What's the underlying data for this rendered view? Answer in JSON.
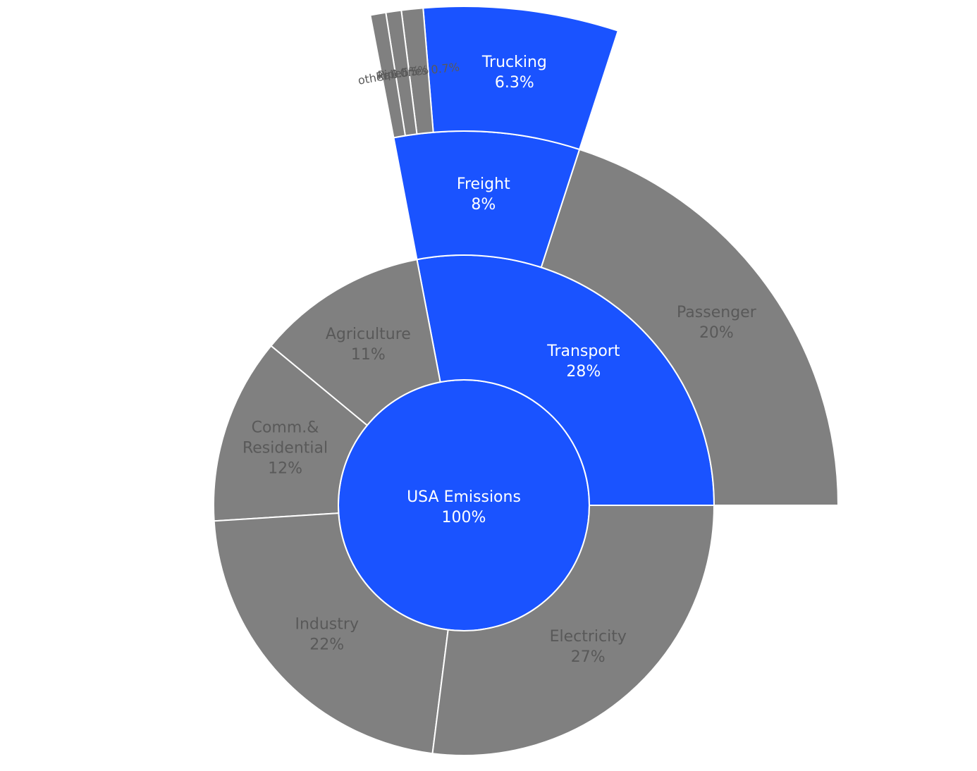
{
  "colors": {
    "highlight": "#1a53ff",
    "muted": "#808080",
    "stroke": "#ffffff",
    "text_on_highlight": "#ffffff",
    "text_on_muted": "#595959"
  },
  "chart_data": {
    "type": "sunburst",
    "title": "",
    "root": {
      "label": "USA Emissions",
      "pct_label": "100%",
      "value": 100,
      "highlight": true
    },
    "ring1": [
      {
        "label": "Transport",
        "pct_label": "28%",
        "value": 28,
        "highlight": true
      },
      {
        "label": "Agriculture",
        "pct_label": "11%",
        "value": 11,
        "highlight": false
      },
      {
        "label": "Comm.& Residential",
        "label_lines": [
          "Comm.&",
          "Residential"
        ],
        "pct_label": "12%",
        "value": 12,
        "highlight": false
      },
      {
        "label": "Industry",
        "pct_label": "22%",
        "value": 22,
        "highlight": false
      },
      {
        "label": "Electricity",
        "pct_label": "27%",
        "value": 27,
        "highlight": false
      }
    ],
    "ring2": [
      {
        "label": "Passenger",
        "pct_label": "20%",
        "value": 20,
        "parent": "Transport",
        "highlight": false
      },
      {
        "label": "Freight",
        "pct_label": "8%",
        "value": 8,
        "parent": "Transport",
        "highlight": true
      }
    ],
    "ring3": [
      {
        "label": "Trucking",
        "pct_label": "6.3%",
        "value": 6.3,
        "parent": "Freight",
        "highlight": true
      },
      {
        "label": "Pipelines",
        "pct_label": "0.7%",
        "value": 0.7,
        "parent": "Freight",
        "highlight": false
      },
      {
        "label": "Rail",
        "pct_label": "0.5%",
        "value": 0.5,
        "parent": "Freight",
        "highlight": false
      },
      {
        "label": "other",
        "pct_label": "0.5%",
        "value": 0.5,
        "parent": "Freight",
        "highlight": false
      }
    ]
  }
}
